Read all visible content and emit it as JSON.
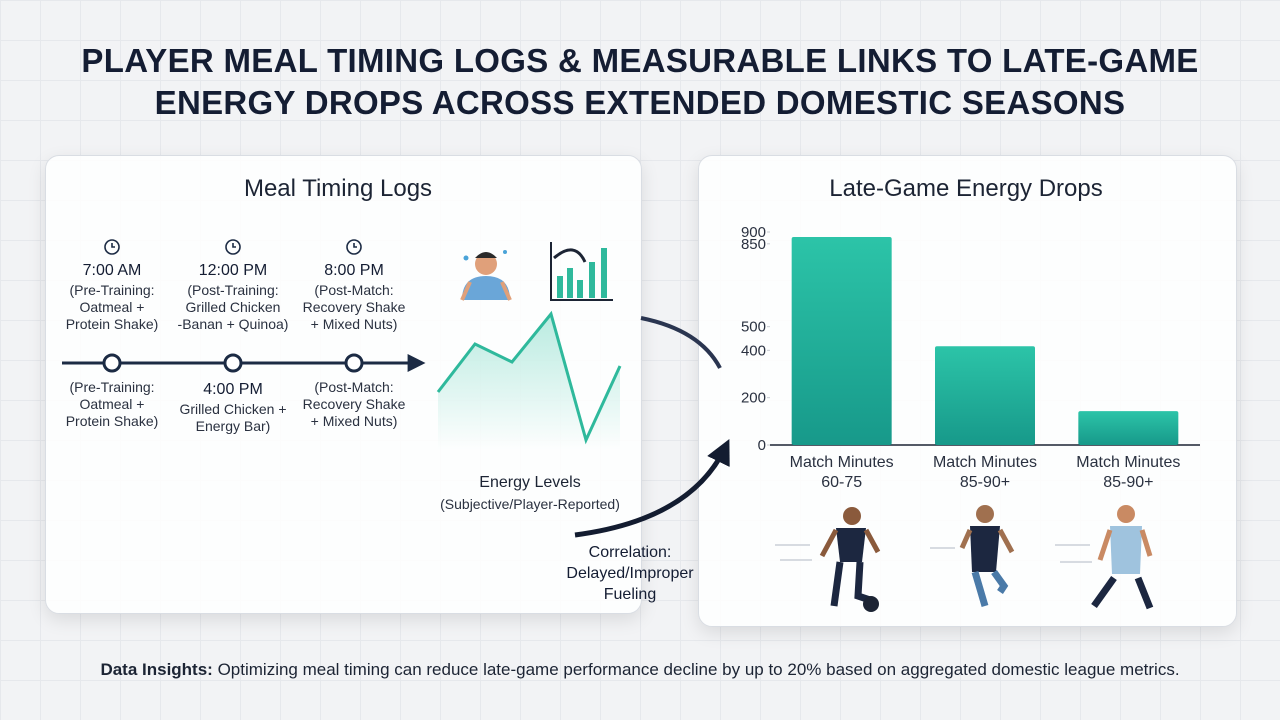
{
  "title": "PLAYER MEAL TIMING LOGS & MEASURABLE LINKS TO LATE-GAME ENERGY DROPS ACROSS EXTENDED DOMESTIC SEASONS",
  "meal_panel": {
    "title": "Meal Timing Logs",
    "top": [
      {
        "time": "7:00 AM",
        "lines": [
          "(Pre-Training:",
          "Oatmeal +",
          "Protein Shake)"
        ]
      },
      {
        "time": "12:00 PM",
        "lines": [
          "(Post-Training:",
          "Grilled Chicken",
          "-Banan + Quinoa)"
        ]
      },
      {
        "time": "8:00 PM",
        "lines": [
          "(Post-Match:",
          "Recovery Shake",
          "+ Mixed Nuts)"
        ]
      }
    ],
    "bottom": [
      {
        "lines": [
          "(Pre-Training:",
          "Oatmeal +",
          "Protein Shake)"
        ]
      },
      {
        "time": "4:00 PM",
        "lines": [
          "Grilled Chicken +",
          "Energy Bar)"
        ]
      },
      {
        "lines": [
          "(Post-Match:",
          "Recovery Shake",
          "+ Mixed Nuts)"
        ]
      }
    ],
    "energy_label": "Energy Levels",
    "energy_sublabel": "(Subjective/Player-Reported)"
  },
  "correlation": [
    "Correlation:",
    "Delayed/Improper",
    "Fueling"
  ],
  "chart_data": {
    "type": "bar",
    "title": "Late-Game Energy Drops",
    "categories": [
      "Match Minutes 60-75",
      "Match Minutes 85-90+",
      "Match Minutes 85-90+"
    ],
    "values": [
      879,
      417,
      143
    ],
    "color": "#22b89e",
    "ylim": [
      0,
      900
    ],
    "yticks": [
      0,
      200,
      400,
      500,
      850,
      900
    ],
    "grid": false
  },
  "insight": {
    "label": "Data Insights:",
    "text": "Optimizing meal timing can reduce late-game performance decline by up to 20% based on aggregated domestic league metrics."
  }
}
